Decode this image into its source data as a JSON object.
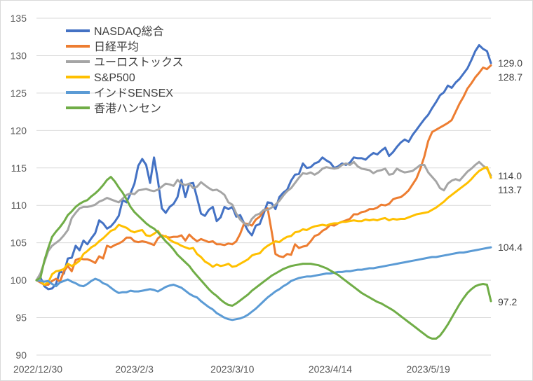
{
  "chart_data": {
    "type": "line",
    "title": "",
    "xlabel": "",
    "ylabel": "",
    "ylim": [
      90,
      135
    ],
    "yticks": [
      90,
      95,
      100,
      105,
      110,
      115,
      120,
      125,
      130,
      135
    ],
    "x_tick_labels": [
      "2022/12/30",
      "2023/2/3",
      "2023/3/10",
      "2023/4/14",
      "2023/5/19"
    ],
    "legend_position": "top-left",
    "grid": "horizontal",
    "end_labels": [
      "129.0",
      "128.7",
      "114.0",
      "113.7",
      "104.4",
      "97.2"
    ],
    "series": [
      {
        "name": "NASDAQ総合",
        "color": "#4472c4",
        "end_label": "129.0",
        "values": [
          100.0,
          100.4,
          99.2,
          98.8,
          98.9,
          99.5,
          101.2,
          100.9,
          102.9,
          103.0,
          104.6,
          104.0,
          105.3,
          104.8,
          105.6,
          106.3,
          108.0,
          107.6,
          106.9,
          107.2,
          107.8,
          108.6,
          110.7,
          110.4,
          111.6,
          112.9,
          115.3,
          116.2,
          115.4,
          113.0,
          116.4,
          113.3,
          109.6,
          109.0,
          109.8,
          110.2,
          111.1,
          113.4,
          111.1,
          112.9,
          113.0,
          111.0,
          108.9,
          108.6,
          109.4,
          109.8,
          107.9,
          108.4,
          109.8,
          109.5,
          109.8,
          108.5,
          108.7,
          107.6,
          106.6,
          106.0,
          107.3,
          107.5,
          108.9,
          110.4,
          110.3,
          109.5,
          111.1,
          111.7,
          112.1,
          113.3,
          114.1,
          114.2,
          115.6,
          115.0,
          115.1,
          115.6,
          115.8,
          116.4,
          116.0,
          115.7,
          115.0,
          115.2,
          115.6,
          115.4,
          115.7,
          116.4,
          116.3,
          116.3,
          116.1,
          116.6,
          117.0,
          116.8,
          117.3,
          117.7,
          116.6,
          117.1,
          117.8,
          118.4,
          118.8,
          118.5,
          119.4,
          120.1,
          120.8,
          121.5,
          122.1,
          123.0,
          123.8,
          124.7,
          125.1,
          126.0,
          125.7,
          126.4,
          126.9,
          127.6,
          128.3,
          129.4,
          130.6,
          131.4,
          130.9,
          130.6,
          129.0
        ]
      },
      {
        "name": "日経平均",
        "color": "#ed7d31",
        "end_label": "128.7",
        "values": [
          100.0,
          99.7,
          99.4,
          99.4,
          99.9,
          100.2,
          99.8,
          101.2,
          101.9,
          101.2,
          102.7,
          102.9,
          102.8,
          102.8,
          102.6,
          102.3,
          103.2,
          102.9,
          104.6,
          104.4,
          104.7,
          104.9,
          105.2,
          105.7,
          105.7,
          105.2,
          105.1,
          105.2,
          105.1,
          104.9,
          104.7,
          105.6,
          106.0,
          105.8,
          105.7,
          105.8,
          105.8,
          106.0,
          105.3,
          106.1,
          105.6,
          105.2,
          105.5,
          105.3,
          105.1,
          105.2,
          104.8,
          104.8,
          104.7,
          104.9,
          104.8,
          105.2,
          106.2,
          107.6,
          107.5,
          107.3,
          108.1,
          108.5,
          109.3,
          109.6,
          106.6,
          103.5,
          103.2,
          103.1,
          103.5,
          103.4,
          104.8,
          104.3,
          104.5,
          104.6,
          105.2,
          105.9,
          106.1,
          106.6,
          106.9,
          107.4,
          107.3,
          107.6,
          107.8,
          108.0,
          108.2,
          108.8,
          108.8,
          109.1,
          109.2,
          109.5,
          109.5,
          109.7,
          110.1,
          110.0,
          110.2,
          110.8,
          111.0,
          111.1,
          111.5,
          112.0,
          112.8,
          113.6,
          114.9,
          116.5,
          118.6,
          119.8,
          120.1,
          120.4,
          120.7,
          121.0,
          121.4,
          122.5,
          123.6,
          124.5,
          125.6,
          126.3,
          127.1,
          127.7,
          128.4,
          128.2,
          128.7
        ]
      },
      {
        "name": "ユーロストックス",
        "color": "#a5a5a5",
        "end_label": "114.0",
        "values": [
          100.0,
          100.9,
          102.4,
          103.9,
          104.6,
          105.0,
          105.4,
          106.0,
          106.7,
          108.3,
          109.0,
          109.6,
          109.8,
          109.8,
          109.9,
          110.1,
          110.5,
          110.7,
          111.0,
          110.8,
          110.6,
          110.4,
          110.9,
          111.4,
          111.6,
          111.5,
          112.0,
          112.1,
          112.2,
          112.0,
          111.9,
          112.1,
          112.5,
          112.9,
          112.8,
          112.6,
          113.4,
          112.9,
          112.7,
          112.9,
          112.3,
          112.5,
          113.1,
          112.7,
          112.3,
          112.0,
          112.1,
          111.8,
          111.4,
          110.4,
          110.1,
          108.9,
          108.1,
          107.6,
          107.3,
          108.2,
          108.7,
          108.9,
          109.4,
          109.4,
          109.7,
          110.1,
          110.6,
          111.3,
          111.9,
          112.3,
          113.0,
          113.7,
          114.3,
          114.2,
          114.4,
          114.1,
          114.4,
          114.9,
          115.1,
          115.0,
          114.9,
          115.0,
          115.4,
          115.6,
          115.4,
          115.8,
          115.2,
          114.9,
          114.8,
          114.7,
          114.3,
          114.6,
          114.7,
          114.9,
          114.1,
          114.2,
          114.9,
          114.6,
          114.4,
          114.5,
          114.6,
          115.0,
          115.4,
          115.4,
          114.4,
          113.8,
          113.2,
          112.3,
          112.0,
          112.9,
          113.3,
          113.5,
          113.3,
          113.9,
          114.5,
          114.9,
          115.4,
          115.8,
          115.3,
          114.9,
          114.0
        ]
      },
      {
        "name": "S&P500",
        "color": "#ffc000",
        "end_label": "113.7",
        "values": [
          100.0,
          99.9,
          99.4,
          99.7,
          100.8,
          101.2,
          101.3,
          101.5,
          102.2,
          101.9,
          102.2,
          102.6,
          103.5,
          103.9,
          104.4,
          104.7,
          105.2,
          105.6,
          106.1,
          106.6,
          106.8,
          107.4,
          107.2,
          107.0,
          106.6,
          106.4,
          106.6,
          106.7,
          106.0,
          105.9,
          106.2,
          106.6,
          105.8,
          105.9,
          105.4,
          105.1,
          104.9,
          104.6,
          104.4,
          104.2,
          104.3,
          103.5,
          103.1,
          102.5,
          102.2,
          101.8,
          102.1,
          101.9,
          102.0,
          102.2,
          101.8,
          101.9,
          102.2,
          102.5,
          102.8,
          103.3,
          103.5,
          103.6,
          104.2,
          104.6,
          104.9,
          105.2,
          105.1,
          105.5,
          105.8,
          105.9,
          106.4,
          106.5,
          106.8,
          106.7,
          107.0,
          107.2,
          107.3,
          107.4,
          107.3,
          107.5,
          107.6,
          107.6,
          107.8,
          107.8,
          107.9,
          108.0,
          107.9,
          107.9,
          108.1,
          108.0,
          108.1,
          108.0,
          108.2,
          108.3,
          108.0,
          108.2,
          108.1,
          108.2,
          108.2,
          108.4,
          108.6,
          108.8,
          108.9,
          109.0,
          109.1,
          109.4,
          109.7,
          110.1,
          110.5,
          111.0,
          111.4,
          111.8,
          112.2,
          112.6,
          113.0,
          113.5,
          114.1,
          114.6,
          114.9,
          115.1,
          113.7
        ]
      },
      {
        "name": "インドSENSEX",
        "color": "#5b9bd5",
        "end_label": "104.4",
        "values": [
          100.0,
          99.9,
          99.8,
          99.9,
          99.5,
          99.2,
          99.7,
          99.9,
          100.1,
          99.8,
          99.6,
          99.3,
          99.2,
          99.5,
          99.9,
          100.2,
          100.0,
          99.6,
          99.4,
          99.0,
          98.6,
          98.3,
          98.4,
          98.4,
          98.6,
          98.5,
          98.5,
          98.6,
          98.7,
          98.8,
          98.7,
          98.5,
          98.8,
          99.1,
          99.3,
          99.4,
          99.2,
          99.0,
          98.6,
          98.2,
          97.9,
          97.7,
          97.2,
          96.8,
          96.4,
          96.1,
          95.6,
          95.3,
          95.0,
          94.8,
          94.7,
          94.8,
          94.9,
          95.1,
          95.4,
          95.8,
          96.2,
          96.7,
          97.2,
          97.7,
          98.1,
          98.5,
          98.8,
          99.2,
          99.5,
          99.9,
          100.1,
          100.3,
          100.4,
          100.5,
          100.5,
          100.6,
          100.7,
          100.8,
          100.9,
          100.9,
          101.0,
          101.1,
          101.1,
          101.2,
          101.2,
          101.3,
          101.4,
          101.4,
          101.5,
          101.6,
          101.6,
          101.7,
          101.8,
          101.9,
          102.0,
          102.1,
          102.2,
          102.3,
          102.4,
          102.5,
          102.6,
          102.7,
          102.8,
          102.9,
          103.0,
          103.1,
          103.1,
          103.2,
          103.3,
          103.4,
          103.5,
          103.6,
          103.7,
          103.7,
          103.8,
          103.9,
          104.0,
          104.1,
          104.2,
          104.3,
          104.4
        ]
      },
      {
        "name": "香港ハンセン",
        "color": "#70ad47",
        "end_label": "97.2",
        "values": [
          100.0,
          100.3,
          102.6,
          104.3,
          105.8,
          106.5,
          107.1,
          107.8,
          108.7,
          109.2,
          109.8,
          110.2,
          110.5,
          110.7,
          111.2,
          111.6,
          112.1,
          112.7,
          113.4,
          113.8,
          113.2,
          112.4,
          111.7,
          110.8,
          109.8,
          109.1,
          108.6,
          108.1,
          107.6,
          107.2,
          106.9,
          106.4,
          105.8,
          105.2,
          104.7,
          104.1,
          103.4,
          102.9,
          102.4,
          101.9,
          101.2,
          100.6,
          100.0,
          99.4,
          98.8,
          98.3,
          97.9,
          97.4,
          97.0,
          96.7,
          96.6,
          96.9,
          97.3,
          97.7,
          98.1,
          98.6,
          99.0,
          99.4,
          99.8,
          100.2,
          100.6,
          100.9,
          101.2,
          101.5,
          101.7,
          101.9,
          102.0,
          102.1,
          102.2,
          102.2,
          102.2,
          102.1,
          102.0,
          101.8,
          101.6,
          101.3,
          101.0,
          100.7,
          100.3,
          99.9,
          99.5,
          99.1,
          98.7,
          98.3,
          98.0,
          97.7,
          97.4,
          97.1,
          96.9,
          96.6,
          96.3,
          96.0,
          95.6,
          95.2,
          94.8,
          94.4,
          94.0,
          93.6,
          93.2,
          92.8,
          92.4,
          92.2,
          92.2,
          92.6,
          93.3,
          94.1,
          95.0,
          95.9,
          96.8,
          97.6,
          98.3,
          98.8,
          99.2,
          99.4,
          99.5,
          99.4,
          97.2
        ]
      }
    ]
  }
}
